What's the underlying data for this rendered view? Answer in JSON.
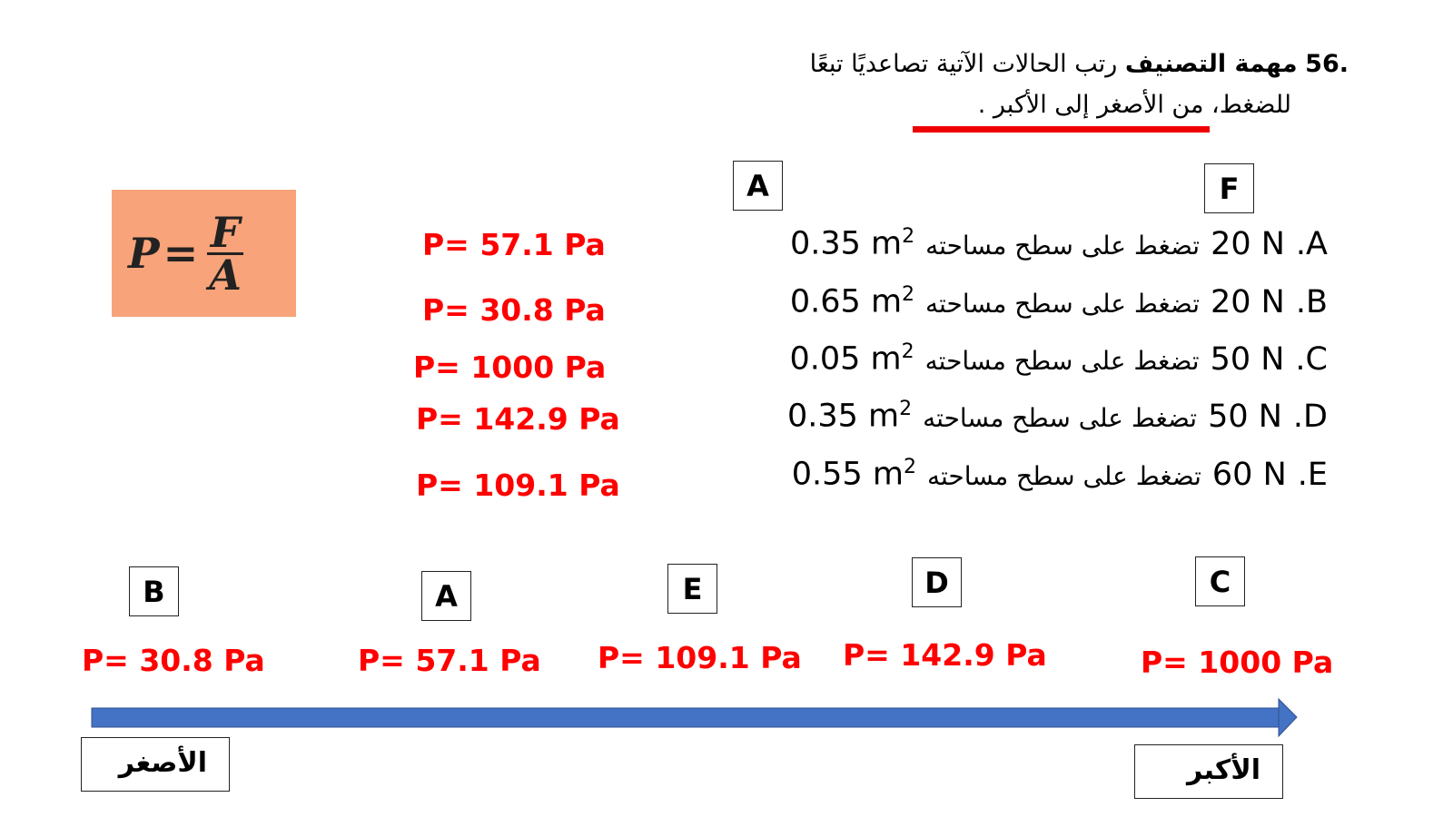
{
  "header": {
    "number": ".56",
    "task_title": "مهمة التصنيف",
    "line1_rest": "رتب الحالات الآتية تصاعديًا تبعًا",
    "line2_a": "للضغط،",
    "line2_b": "من الأصغر إلى الأكبر .",
    "underline_color": "#ff0000"
  },
  "formula": {
    "lhs": "P",
    "eq": "=",
    "num": "F",
    "den": "A",
    "bg": "#f8a37a"
  },
  "top_boxes": {
    "a": "A",
    "f": "F"
  },
  "cases": [
    {
      "letter": ".A",
      "force": "20 N",
      "text": "تضغط على سطح مساحته",
      "area": "0.35 m",
      "exp": "2",
      "pressure": "P= 57.1 Pa"
    },
    {
      "letter": ".B",
      "force": "20 N",
      "text": "تضغط على سطح مساحته",
      "area": "0.65 m",
      "exp": "2",
      "pressure": "P= 30.8 Pa"
    },
    {
      "letter": ".C",
      "force": "50 N",
      "text": "تضغط على سطح مساحته",
      "area": "0.05 m",
      "exp": "2",
      "pressure": "P= 1000 Pa"
    },
    {
      "letter": ".D",
      "force": "50 N",
      "text": "تضغط على سطح مساحته",
      "area": "0.35 m",
      "exp": "2",
      "pressure": "P= 142.9 Pa"
    },
    {
      "letter": ".E",
      "force": "60 N",
      "text": "تضغط على سطح مساحته",
      "area": "0.55 m",
      "exp": "2",
      "pressure": "P= 109.1 Pa"
    }
  ],
  "ordered": [
    {
      "letter": "B",
      "pressure": "P= 30.8 Pa"
    },
    {
      "letter": "A",
      "pressure": "P= 57.1 Pa"
    },
    {
      "letter": "E",
      "pressure": "P= 109.1 Pa"
    },
    {
      "letter": "D",
      "pressure": "P= 142.9 Pa"
    },
    {
      "letter": "C",
      "pressure": "P= 1000 Pa"
    }
  ],
  "axis": {
    "smallest": "الأصغر",
    "largest": "الأكبر",
    "arrow_color": "#4472c4"
  }
}
